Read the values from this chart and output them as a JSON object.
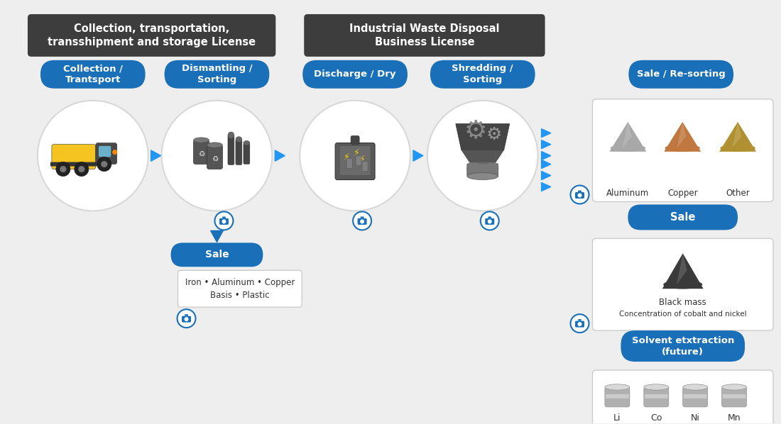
{
  "bg_color": "#eeeeee",
  "dark_header_color": "#3d3d3d",
  "blue_btn_color": "#1a70b8",
  "white": "#ffffff",
  "circle_bg": "#ececec",
  "header1_text": [
    "Collection, transportation,",
    "transshipment and storage License"
  ],
  "header2_text": [
    "Industrial Waste Disposal",
    "Business License"
  ],
  "btn_col_transp": "Collection /\nTrantsport",
  "btn_dismantle": "Dismantling /\nSorting",
  "btn_discharge": "Discharge / Dry",
  "btn_shredding": "Shredding /\nSorting",
  "btn_resorting": "Sale / Re-sorting",
  "btn_sale1": "Sale",
  "btn_sale2": "Sale",
  "btn_solvent": "Solvent etxtraction\n(future)",
  "metals_top": [
    "Aluminum",
    "Copper",
    "Other"
  ],
  "metals_bottom": [
    "Li",
    "Co",
    "Ni",
    "Mn"
  ],
  "text_iron": "Iron • Aluminum • Copper\nBasis • Plastic",
  "text_black_mass1": "Black mass",
  "text_black_mass2": "Concentration of cobalt and nickel",
  "arrow_color": "#2196F3",
  "camera_color": "#1a70b8",
  "pile_aluminum": "#a8a8a8",
  "pile_copper": "#c07840",
  "pile_other": "#b09030",
  "pile_black": "#3a3a3a",
  "cyl_color": "#b0b0b0",
  "cyl_top": "#d0d0d0"
}
